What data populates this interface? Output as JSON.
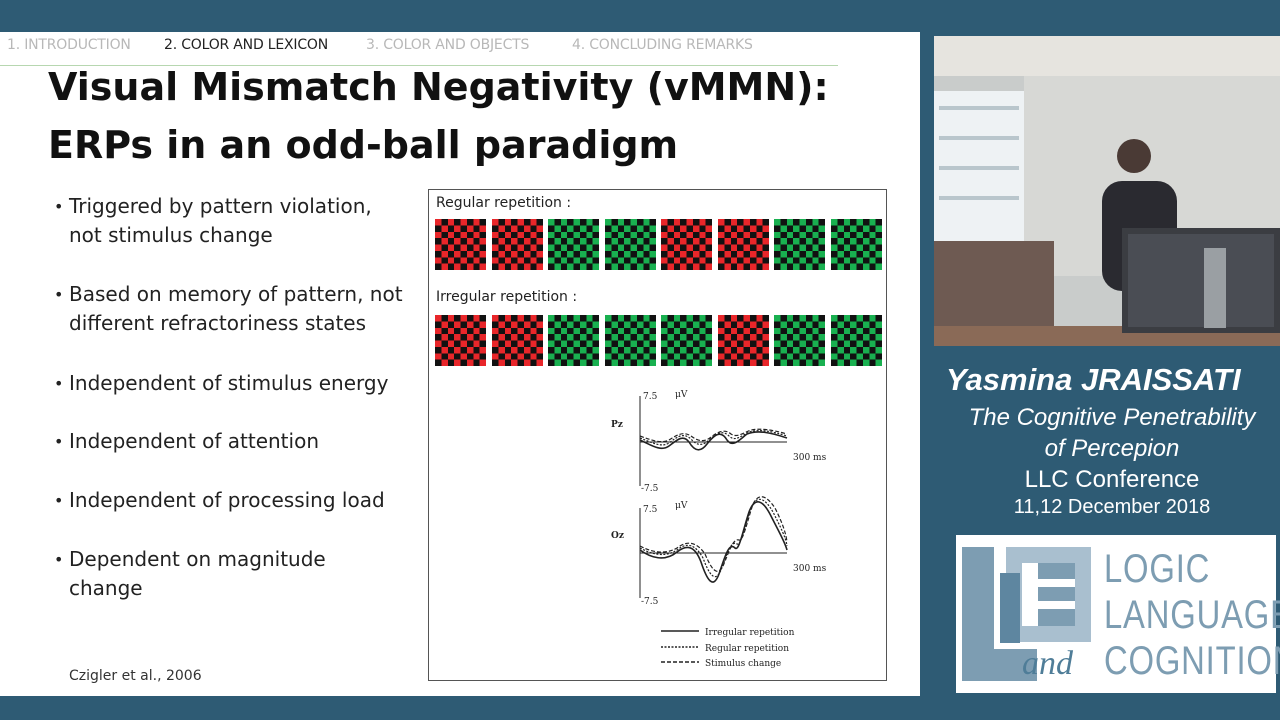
{
  "nav": {
    "items": [
      "1. INTRODUCTION",
      "2. COLOR AND LEXICON",
      "3. COLOR AND OBJECTS",
      "4. CONCLUDING REMARKS"
    ],
    "active_index": 1
  },
  "slide": {
    "title_line1": "Visual Mismatch Negativity (vMMN):",
    "title_line2": "ERPs in an odd-ball paradigm",
    "bullets": [
      {
        "line1": "Triggered by pattern violation,",
        "line2": "not stimulus change"
      },
      {
        "line1": "Based on memory of pattern, not",
        "line2": "different refractoriness states"
      },
      {
        "line1": "Independent of stimulus energy",
        "line2": ""
      },
      {
        "line1": "Independent of attention",
        "line2": ""
      },
      {
        "line1": "Independent of processing load",
        "line2": ""
      },
      {
        "line1": "Dependent on magnitude",
        "line2": "change"
      }
    ],
    "citation": "Czigler et al., 2006"
  },
  "figure": {
    "regular_label": "Regular repetition :",
    "irregular_label": "Irregular repetition :",
    "regular_sequence": [
      "red",
      "red",
      "green",
      "green",
      "red",
      "red",
      "green",
      "green"
    ],
    "irregular_sequence": [
      "red",
      "red",
      "green",
      "green",
      "green",
      "red",
      "green",
      "green"
    ],
    "colors": {
      "red": "#e8262a",
      "green": "#19b050",
      "dark": "#111111"
    },
    "erp": {
      "pz_label": "Pz",
      "oz_label": "Oz",
      "y_top": "7.5",
      "y_bottom": "-7.5",
      "unit": "μV",
      "time_label": "300 ms",
      "legend": [
        "Irregular repetition",
        "Regular repetition",
        "Stimulus change"
      ]
    }
  },
  "speaker": {
    "name": "Yasmina JRAISSATI",
    "talk_line1": "The Cognitive Penetrability",
    "talk_line2": "of Percepion",
    "conference": "LLC Conference",
    "date": "11,12 December 2018"
  },
  "logo": {
    "word1": "LOGIC",
    "word2": "LANGUAGE",
    "word3": "COGNITION",
    "and": "and",
    "color": "#7d9db2"
  }
}
